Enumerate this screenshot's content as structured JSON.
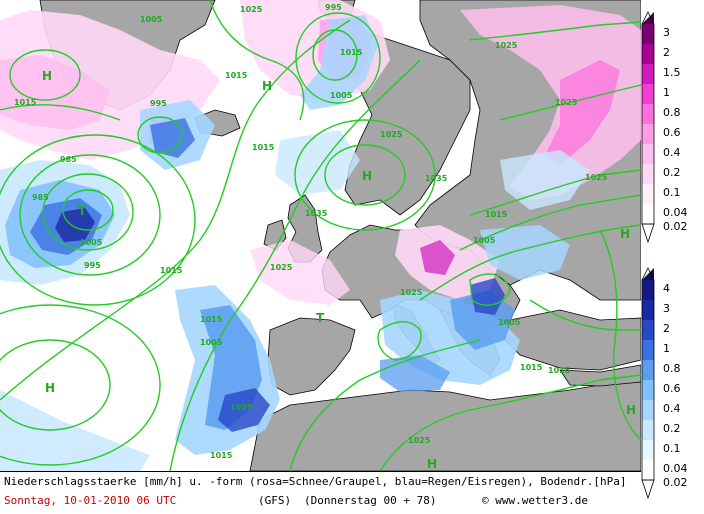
{
  "caption": {
    "line1": "Niederschlagsstaerke [mm/h] u. -form (rosa=Schnee/Graupel, blau=Regen/Eisregen), Bodendr.[hPa]",
    "date": "Sonntag, 10-01-2010  06 UTC",
    "model": "(GFS)",
    "run": "(Donnerstag 00 + 78)",
    "credit": "© www.wetter3.de"
  },
  "colors": {
    "ocean": "#ffffff",
    "land": "#a6a6a6",
    "coastline": "#000000",
    "isobar": "#22cc22",
    "snow": [
      "#fff0fc",
      "#ffd8f6",
      "#ffbff0",
      "#ff9ce8",
      "#ff6edd",
      "#f040d0",
      "#d21bbf",
      "#a80096",
      "#7a0070",
      "#4a0048"
    ],
    "rain": [
      "#e8f6ff",
      "#c8e8ff",
      "#a6d6ff",
      "#80c0ff",
      "#5a9cf0",
      "#3a70e0",
      "#2848c8",
      "#1a2aa0",
      "#141a80",
      "#0c0c5a"
    ]
  },
  "snow_legend": {
    "ticks": [
      "3",
      "2",
      "1.5",
      "1",
      "0.8",
      "0.6",
      "0.4",
      "0.2",
      "0.1",
      "0.04",
      "0.02"
    ]
  },
  "rain_legend": {
    "ticks": [
      "4",
      "3",
      "2",
      "1",
      "0.8",
      "0.6",
      "0.4",
      "0.2",
      "0.1",
      "0.04",
      "0.02"
    ]
  },
  "pressure_labels": [
    "1005",
    "1025",
    "995",
    "1015",
    "1015",
    "1025",
    "995",
    "985",
    "1005",
    "1015",
    "1025",
    "1035",
    "1035",
    "1025",
    "1025",
    "1005",
    "1015",
    "1005",
    "1015",
    "1015",
    "1025",
    "1015",
    "1015",
    "1025",
    "985",
    "995",
    "1005",
    "1025",
    "1015",
    "1015",
    "1025",
    "1005"
  ],
  "centers": [
    "H",
    "H",
    "T",
    "H",
    "H",
    "H",
    "T",
    "H",
    "H"
  ]
}
